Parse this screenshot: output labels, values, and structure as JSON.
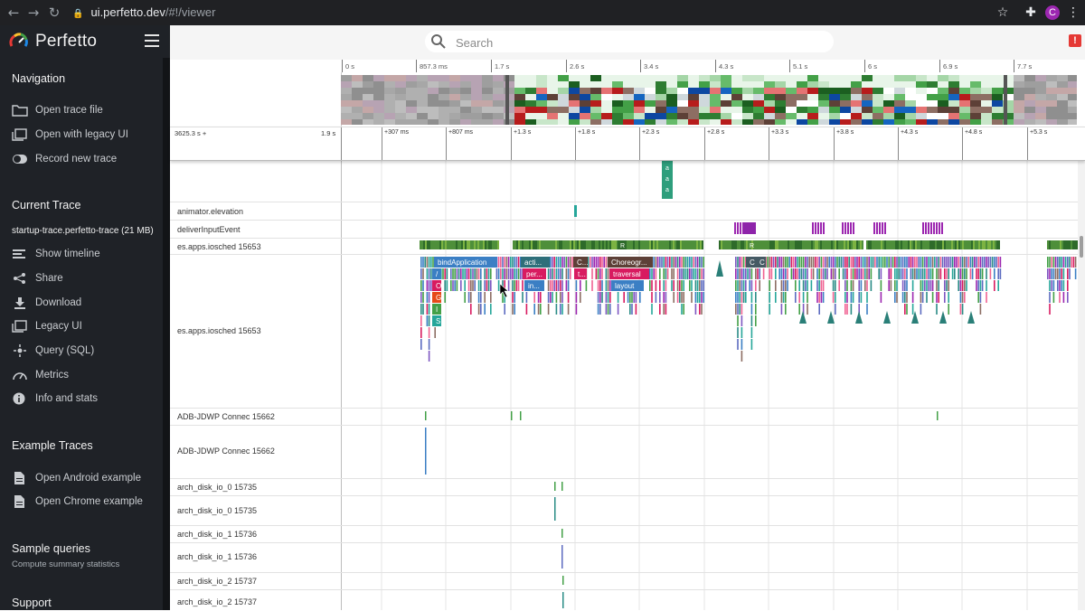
{
  "browser": {
    "url_host": "ui.perfetto.dev",
    "url_path": "/#!/viewer",
    "profile_initial": "C"
  },
  "app": {
    "title": "Perfetto"
  },
  "search": {
    "placeholder": "Search"
  },
  "sidebar": {
    "navigation": {
      "title": "Navigation",
      "items": [
        {
          "label": "Open trace file",
          "icon": "folder-icon"
        },
        {
          "label": "Open with legacy UI",
          "icon": "legacy-window-icon"
        },
        {
          "label": "Record new trace",
          "icon": "record-toggle-icon"
        }
      ]
    },
    "current_trace": {
      "title": "Current Trace",
      "trace_name": "startup-trace.perfetto-trace (21 MB)",
      "items": [
        {
          "label": "Show timeline",
          "icon": "timeline-icon"
        },
        {
          "label": "Share",
          "icon": "share-icon"
        },
        {
          "label": "Download",
          "icon": "download-icon"
        },
        {
          "label": "Legacy UI",
          "icon": "legacy-window-icon"
        },
        {
          "label": "Query (SQL)",
          "icon": "query-icon"
        },
        {
          "label": "Metrics",
          "icon": "metrics-icon"
        },
        {
          "label": "Info and stats",
          "icon": "info-icon"
        }
      ]
    },
    "example_traces": {
      "title": "Example Traces",
      "items": [
        {
          "label": "Open Android example",
          "icon": "document-icon"
        },
        {
          "label": "Open Chrome example",
          "icon": "document-icon"
        }
      ]
    },
    "sample_queries": {
      "title": "Sample queries",
      "subtitle": "Compute summary statistics"
    },
    "support": {
      "title": "Support"
    }
  },
  "overview": {
    "ticks": [
      "0 s",
      "857.3 ms",
      "1.7 s",
      "2.6 s",
      "3.4 s",
      "4.3 s",
      "5.1 s",
      "6 s",
      "6.9 s",
      "7.7 s"
    ]
  },
  "time_axis": {
    "offset": "3625.3 s +",
    "duration": "1.9 s",
    "ticks": [
      "+307 ms",
      "+807 ms",
      "+1.3 s",
      "+1.8 s",
      "+2.3 s",
      "+2.8 s",
      "+3.3 s",
      "+3.8 s",
      "+4.3 s",
      "+4.8 s",
      "+5.3 s"
    ]
  },
  "tracks": [
    {
      "name": "animator.elevation"
    },
    {
      "name": "deliverInputEvent"
    },
    {
      "name": "es.apps.iosched 15653"
    },
    {
      "name": "es.apps.iosched 15653"
    },
    {
      "name": "ADB-JDWP Connec 15662"
    },
    {
      "name": "ADB-JDWP Connec 15662"
    },
    {
      "name": "arch_disk_io_0 15735"
    },
    {
      "name": "arch_disk_io_0 15735"
    },
    {
      "name": "arch_disk_io_1 15736"
    },
    {
      "name": "arch_disk_io_1 15736"
    },
    {
      "name": "arch_disk_io_2 15737"
    },
    {
      "name": "arch_disk_io_2 15737"
    }
  ],
  "slices": {
    "labels": [
      "bindApplication",
      "acti...",
      "per...",
      "in...",
      "C...",
      "t...",
      "Choreogr...",
      "traversal",
      "layout",
      "C",
      "C",
      "R",
      "R",
      "/",
      "O",
      "G",
      "I",
      "S",
      "I",
      "I"
    ]
  },
  "colors": {
    "sidebar_bg": "#1f2227",
    "thread_state_green": "#4e8f3a",
    "slice_teal": "#2a8c86",
    "slice_blue": "#3b7fc4",
    "slice_purple": "#9c27b0",
    "slice_pink": "#d81b60",
    "alert_red": "#e53935"
  }
}
